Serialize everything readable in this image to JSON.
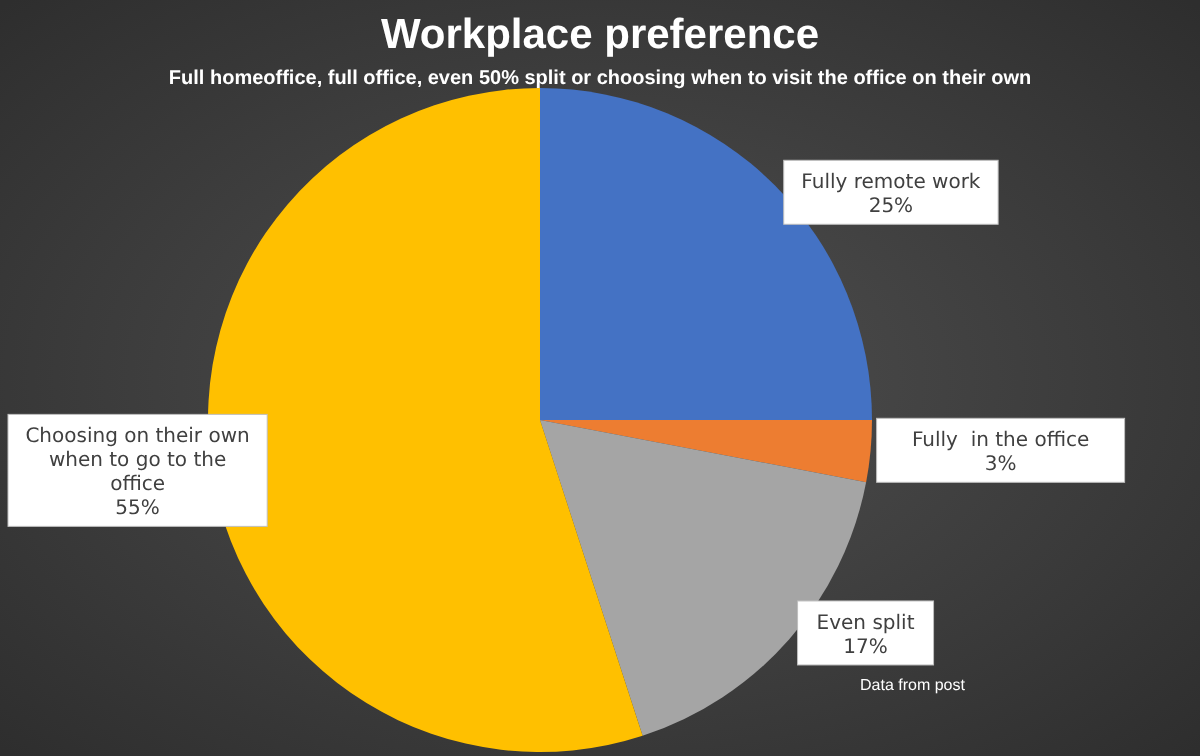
{
  "chart_data": {
    "type": "pie",
    "title": "Workplace preference",
    "subtitle": "Full homeoffice, full office, even 50% split or choosing when to visit the office on their own",
    "categories": [
      "Fully remote work",
      "Fully  in the office",
      "Even split",
      "Choosing on their own when to go to the office"
    ],
    "values": [
      25,
      3,
      17,
      55
    ],
    "colors": [
      "#4472c4",
      "#ed7d31",
      "#a5a5a5",
      "#ffc000"
    ],
    "value_labels": [
      "25%",
      "3%",
      "17%",
      "55%"
    ],
    "annotations": [
      "Data from post"
    ]
  }
}
